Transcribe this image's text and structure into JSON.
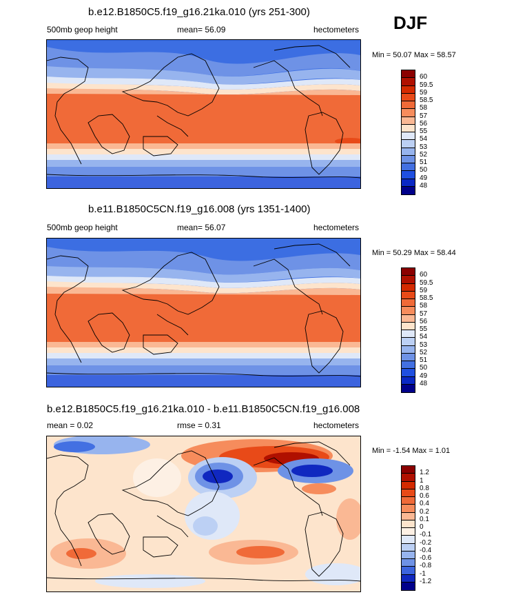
{
  "season": "DJF",
  "panels": [
    {
      "title": "b.e12.B1850C5.f19_g16.21ka.010 (yrs 251-300)",
      "left": "500mb geop height",
      "center": "mean=  56.09",
      "right": "hectometers",
      "minmax": "Min =  50.07 Max =  58.57",
      "colorbar": {
        "labels": [
          "60",
          "59.5",
          "59",
          "58.5",
          "58",
          "57",
          "56",
          "55",
          "54",
          "53",
          "52",
          "51",
          "50",
          "49",
          "48"
        ],
        "colors": [
          "#8b0000",
          "#b01000",
          "#d42a00",
          "#e84a18",
          "#f06a38",
          "#f68c5c",
          "#fab894",
          "#fde4cc",
          "#dfe8f8",
          "#bcd0f4",
          "#97b4ee",
          "#6e92e6",
          "#4370e2",
          "#1f4fe0",
          "#0a28c4",
          "#00008a"
        ]
      }
    },
    {
      "title": "b.e11.B1850C5CN.f19_g16.008 (yrs 1351-1400)",
      "left": "500mb geop height",
      "center": "mean=  56.07",
      "right": "hectometers",
      "minmax": "Min =  50.29 Max =  58.44",
      "colorbar": {
        "labels": [
          "60",
          "59.5",
          "59",
          "58.5",
          "58",
          "57",
          "56",
          "55",
          "54",
          "53",
          "52",
          "51",
          "50",
          "49",
          "48"
        ],
        "colors": [
          "#8b0000",
          "#b01000",
          "#d42a00",
          "#e84a18",
          "#f06a38",
          "#f68c5c",
          "#fab894",
          "#fde4cc",
          "#dfe8f8",
          "#bcd0f4",
          "#97b4ee",
          "#6e92e6",
          "#4370e2",
          "#1f4fe0",
          "#0a28c4",
          "#00008a"
        ]
      }
    },
    {
      "title": "b.e12.B1850C5.f19_g16.21ka.010 - b.e11.B1850C5CN.f19_g16.008",
      "left": "mean =   0.02",
      "center": "rmse =   0.31",
      "right": "hectometers",
      "minmax": "Min =  -1.54 Max =   1.01",
      "colorbar": {
        "labels": [
          "1.2",
          "1",
          "0.8",
          "0.6",
          "0.4",
          "0.2",
          "0.1",
          "0",
          "-0.1",
          "-0.2",
          "-0.4",
          "-0.6",
          "-0.8",
          "-1",
          "-1.2"
        ],
        "colors": [
          "#8b0000",
          "#b01000",
          "#d42a00",
          "#e84a18",
          "#f06a38",
          "#f68c5c",
          "#fab894",
          "#fde4cc",
          "#fdf0e4",
          "#dfe8f8",
          "#bcd0f4",
          "#97b4ee",
          "#6e92e6",
          "#3c64de",
          "#1028c0",
          "#00008a"
        ]
      }
    }
  ]
}
